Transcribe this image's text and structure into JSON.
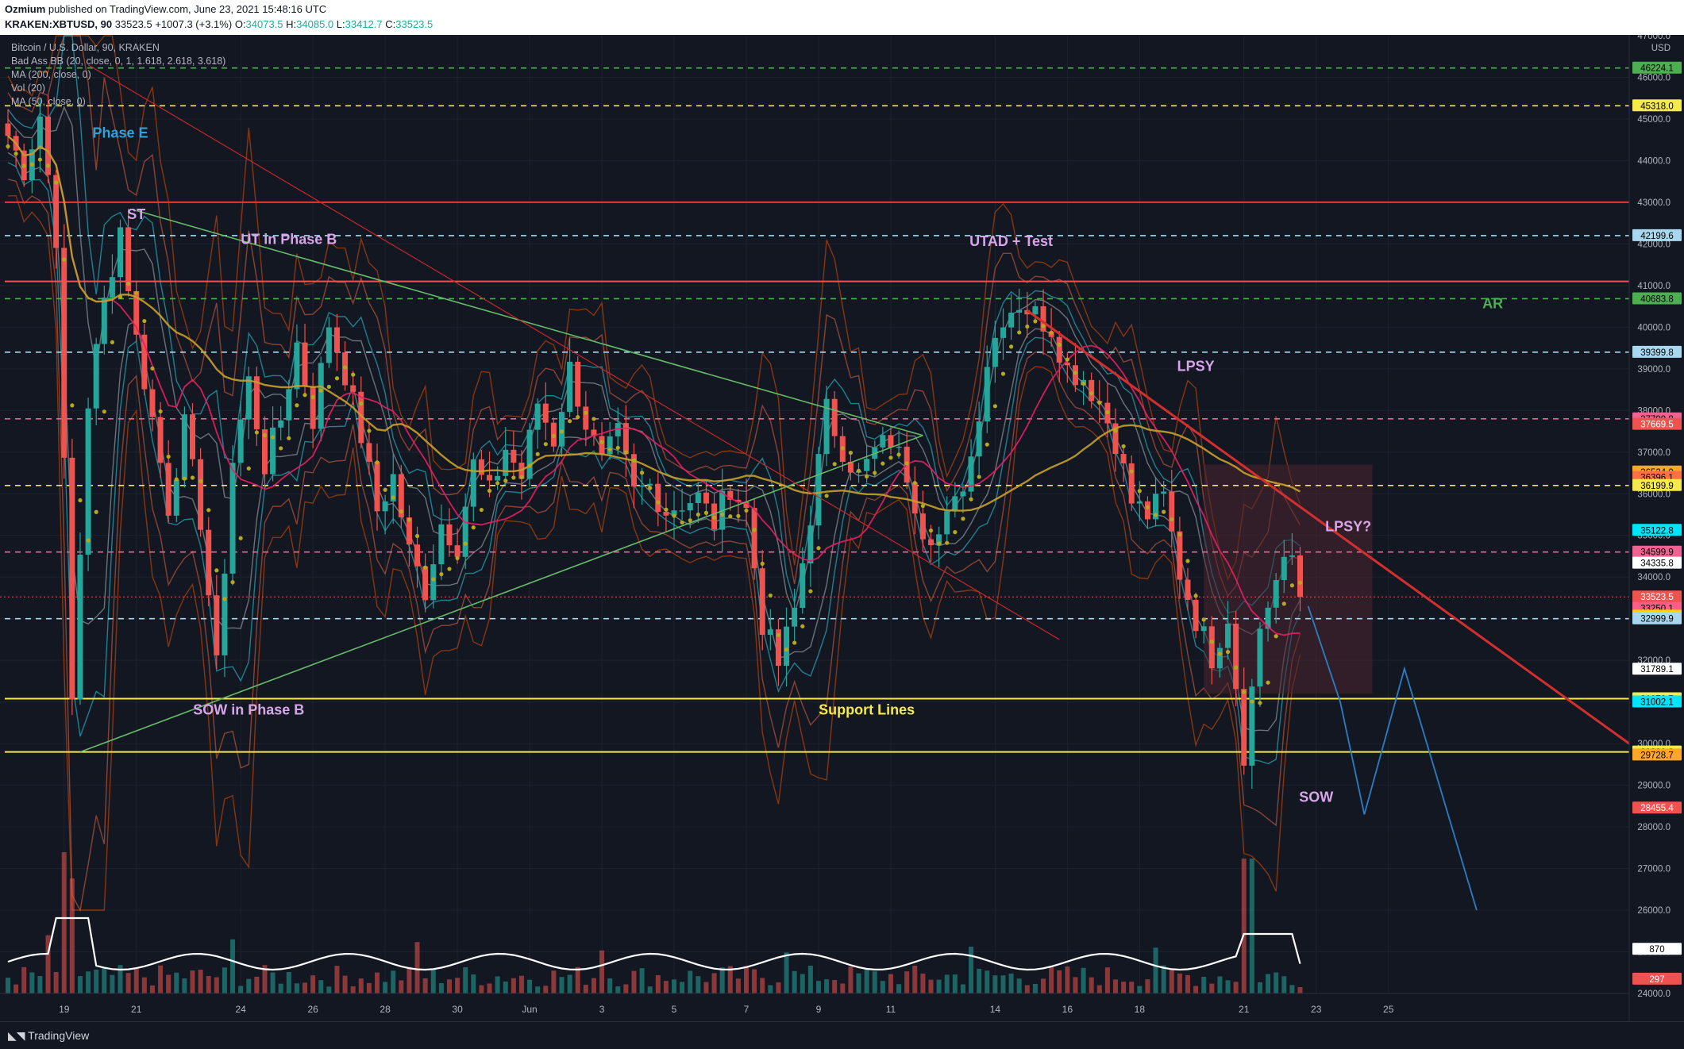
{
  "header": {
    "author": "Ozmium",
    "published": "published on TradingView.com, June 23, 2021 15:48:16 UTC",
    "symbol": "KRAKEN:XBTUSD, 90",
    "last": "33523.5",
    "change": "+1007.3 (+3.1%)",
    "open_label": "O:",
    "open": "34073.5",
    "high_label": "H:",
    "high": "34085.0",
    "low_label": "L:",
    "low": "33412.7",
    "close_label": "C:",
    "close": "33523.5"
  },
  "legend": [
    "Bitcoin / U.S. Dollar, 90, KRAKEN",
    "Bad Ass BB (20, close, 0, 1, 1.618, 2.618, 3.618)",
    "MA (200, close, 0)",
    "Vol (20)",
    "MA (50, close, 0)"
  ],
  "footer": {
    "brand": "TradingView"
  },
  "colors": {
    "background": "#131722",
    "up": "#26a69a",
    "down": "#ef5350",
    "yellow": "#f5e94b",
    "red_line": "#e53935",
    "green_line": "#66bb6a",
    "blue_dash": "#a7d8f0",
    "pink_dash": "#f06292",
    "label_purple": "#d6a6e8",
    "label_blue": "#2fa3d9"
  },
  "chart_data": {
    "type": "candlestick",
    "title": "Bitcoin / U.S. Dollar, 90, KRAKEN",
    "currency": "USD",
    "ylim": [
      24000,
      47000
    ],
    "x_ticks": [
      "19",
      "21",
      "24",
      "26",
      "28",
      "30",
      "Jun",
      "3",
      "5",
      "7",
      "9",
      "11",
      "14",
      "16",
      "18",
      "21",
      "23",
      "25"
    ],
    "y_ticks": [
      "47000.0",
      "46000.0",
      "45000.0",
      "44000.0",
      "43000.0",
      "42000.0",
      "41000.0",
      "40000.0",
      "39000.0",
      "38000.0",
      "37000.0",
      "36000.0",
      "35000.0",
      "34000.0",
      "33000.0",
      "32000.0",
      "31000.0",
      "30000.0",
      "29000.0",
      "28000.0",
      "27000.0",
      "26000.0",
      "25000.0",
      "24000.0"
    ],
    "price_path": [
      [
        0,
        44600
      ],
      [
        2,
        43800
      ],
      [
        4,
        45100
      ],
      [
        6,
        42200
      ],
      [
        8,
        31000
      ],
      [
        10,
        38200
      ],
      [
        12,
        40600
      ],
      [
        14,
        42400
      ],
      [
        16,
        39700
      ],
      [
        18,
        37800
      ],
      [
        20,
        35700
      ],
      [
        22,
        37600
      ],
      [
        24,
        35400
      ],
      [
        26,
        31800
      ],
      [
        28,
        36800
      ],
      [
        30,
        38700
      ],
      [
        32,
        36700
      ],
      [
        34,
        37800
      ],
      [
        36,
        39600
      ],
      [
        38,
        37800
      ],
      [
        40,
        40100
      ],
      [
        42,
        38900
      ],
      [
        44,
        37400
      ],
      [
        46,
        35600
      ],
      [
        48,
        36400
      ],
      [
        50,
        34600
      ],
      [
        52,
        33700
      ],
      [
        54,
        35300
      ],
      [
        56,
        34800
      ],
      [
        58,
        36700
      ],
      [
        60,
        36000
      ],
      [
        62,
        37100
      ],
      [
        64,
        36400
      ],
      [
        66,
        38200
      ],
      [
        68,
        37300
      ],
      [
        70,
        39000
      ],
      [
        72,
        37700
      ],
      [
        74,
        36700
      ],
      [
        76,
        37400
      ],
      [
        78,
        36000
      ],
      [
        80,
        36200
      ],
      [
        82,
        35600
      ],
      [
        84,
        35800
      ],
      [
        86,
        35900
      ],
      [
        88,
        35300
      ],
      [
        90,
        36200
      ],
      [
        92,
        35600
      ],
      [
        94,
        32900
      ],
      [
        96,
        31900
      ],
      [
        98,
        33200
      ],
      [
        100,
        35500
      ],
      [
        102,
        38000
      ],
      [
        104,
        37100
      ],
      [
        106,
        36400
      ],
      [
        108,
        37000
      ],
      [
        110,
        37300
      ],
      [
        112,
        36500
      ],
      [
        114,
        35200
      ],
      [
        116,
        35000
      ],
      [
        118,
        35700
      ],
      [
        120,
        36900
      ],
      [
        122,
        39200
      ],
      [
        124,
        40300
      ],
      [
        126,
        40600
      ],
      [
        128,
        40300
      ],
      [
        130,
        40000
      ],
      [
        132,
        39000
      ],
      [
        134,
        38800
      ],
      [
        136,
        38200
      ],
      [
        138,
        37300
      ],
      [
        140,
        35800
      ],
      [
        142,
        35500
      ],
      [
        144,
        35900
      ],
      [
        146,
        34100
      ],
      [
        148,
        33000
      ],
      [
        150,
        32100
      ],
      [
        152,
        33100
      ],
      [
        154,
        29800
      ],
      [
        156,
        32800
      ],
      [
        158,
        33900
      ],
      [
        160,
        34500
      ],
      [
        161,
        33523.5
      ]
    ],
    "horizontal_levels": [
      {
        "price": 46224.1,
        "style": "dash",
        "color": "#4caf50",
        "label": "46224.1"
      },
      {
        "price": 45318.0,
        "style": "dash",
        "color": "#f5e94b",
        "label": "45318.0"
      },
      {
        "price": 43000.0,
        "style": "solid",
        "color": "#e53935"
      },
      {
        "price": 42199.6,
        "style": "dash",
        "color": "#a7d8f0",
        "label": "42199.6"
      },
      {
        "price": 41100.0,
        "style": "solid",
        "color": "#ef5350"
      },
      {
        "price": 40683.8,
        "style": "dash",
        "color": "#4caf50",
        "label": "40683.8"
      },
      {
        "price": 39399.8,
        "style": "dash",
        "color": "#a7d8f0",
        "label": "39399.8"
      },
      {
        "price": 37799.8,
        "style": "dash",
        "color": "#f06292",
        "label": "37799.8"
      },
      {
        "price": 36199.9,
        "style": "dash",
        "color": "#f5e94b",
        "label": "36199.9"
      },
      {
        "price": 34599.9,
        "style": "dash",
        "color": "#f06292",
        "label": "34599.9"
      },
      {
        "price": 32999.9,
        "style": "dash",
        "color": "#a7d8f0",
        "label": "32999.9"
      },
      {
        "price": 31078.7,
        "style": "solid",
        "color": "#f5e94b",
        "label": "31078.7"
      },
      {
        "price": 29800.0,
        "style": "solid",
        "color": "#f5e94b",
        "label": "29800.0"
      }
    ],
    "price_labels": [
      {
        "price": 46224.1,
        "text": "46224.1",
        "bg": "#4caf50",
        "fg": "#000000"
      },
      {
        "price": 45318.0,
        "text": "45318.0",
        "bg": "#f5e94b",
        "fg": "#000000"
      },
      {
        "price": 42199.6,
        "text": "42199.6",
        "bg": "#a7d8f0",
        "fg": "#000000"
      },
      {
        "price": 40683.8,
        "text": "40683.8",
        "bg": "#4caf50",
        "fg": "#000000"
      },
      {
        "price": 39399.8,
        "text": "39399.8",
        "bg": "#a7d8f0",
        "fg": "#000000"
      },
      {
        "price": 37799.8,
        "text": "37799.8",
        "bg": "#f06292",
        "fg": "#000000"
      },
      {
        "price": 37669.5,
        "text": "37669.5",
        "bg": "#ef5350",
        "fg": "#ffffff"
      },
      {
        "price": 36524.0,
        "text": "36524.0",
        "bg": "#ffa726",
        "fg": "#000000"
      },
      {
        "price": 36396.1,
        "text": "36396.1",
        "bg": "#ff7043",
        "fg": "#000000"
      },
      {
        "price": 36199.9,
        "text": "36199.9",
        "bg": "#f5e94b",
        "fg": "#000000"
      },
      {
        "price": 35122.8,
        "text": "35122.8",
        "bg": "#00e5ff",
        "fg": "#000000"
      },
      {
        "price": 34599.9,
        "text": "34599.9",
        "bg": "#f06292",
        "fg": "#000000"
      },
      {
        "price": 34335.8,
        "text": "34335.8",
        "bg": "#ffffff",
        "fg": "#000000"
      },
      {
        "price": 33523.5,
        "text": "33523.5",
        "bg": "#ef5350",
        "fg": "#ffffff",
        "sub": "41:47"
      },
      {
        "price": 33250.1,
        "text": "33250.1",
        "bg": "#ff5c8a",
        "fg": "#000000"
      },
      {
        "price": 33062.4,
        "text": "33062.4",
        "bg": "#ffd600",
        "fg": "#000000"
      },
      {
        "price": 32999.9,
        "text": "32999.9",
        "bg": "#a7d8f0",
        "fg": "#000000"
      },
      {
        "price": 31789.1,
        "text": "31789.1",
        "bg": "#ffffff",
        "fg": "#000000"
      },
      {
        "price": 31078.7,
        "text": "31078.7",
        "bg": "#f5e94b",
        "fg": "#000000"
      },
      {
        "price": 31002.1,
        "text": "31002.1",
        "bg": "#00e5ff",
        "fg": "#000000"
      },
      {
        "price": 29800.0,
        "text": "29800.0",
        "bg": "#f5e94b",
        "fg": "#000000"
      },
      {
        "price": 29728.7,
        "text": "29728.7",
        "bg": "#ffa726",
        "fg": "#000000"
      },
      {
        "price": 28455.4,
        "text": "28455.4",
        "bg": "#ef5350",
        "fg": "#ffffff"
      },
      {
        "price": 25063.0,
        "text": "870",
        "bg": "#ffffff",
        "fg": "#000000"
      },
      {
        "price": 24345.0,
        "text": "297",
        "bg": "#ef5350",
        "fg": "#ffffff"
      }
    ],
    "annotations": [
      {
        "text": "Phase E",
        "bar": 14,
        "price": 44550,
        "color": "#2fa3d9"
      },
      {
        "text": "ST",
        "bar": 16,
        "price": 42600,
        "color": "#d6a6e8"
      },
      {
        "text": "UT in Phase B",
        "bar": 35,
        "price": 42000,
        "color": "#d6a6e8"
      },
      {
        "text": "UTAD + Test",
        "bar": 125,
        "price": 41950,
        "color": "#d6a6e8"
      },
      {
        "text": "AR",
        "bar": 185,
        "price": 40450,
        "color": "#4caf50"
      },
      {
        "text": "LPSY",
        "bar": 148,
        "price": 38950,
        "color": "#d6a6e8"
      },
      {
        "text": "LPSY?",
        "bar": 167,
        "price": 35100,
        "color": "#d6a6e8"
      },
      {
        "text": "SOW in Phase B",
        "bar": 30,
        "price": 30700,
        "color": "#d6a6e8"
      },
      {
        "text": "Support Lines",
        "bar": 107,
        "price": 30700,
        "color": "#f5e94b"
      },
      {
        "text": "SOW",
        "bar": 163,
        "price": 28600,
        "color": "#d6a6e8"
      }
    ],
    "x_ticks_bars": [
      7,
      16,
      29,
      38,
      47,
      56,
      65,
      74,
      83,
      92,
      101,
      110,
      123,
      132,
      141,
      154,
      163,
      172
    ],
    "bars_visible": 185
  }
}
